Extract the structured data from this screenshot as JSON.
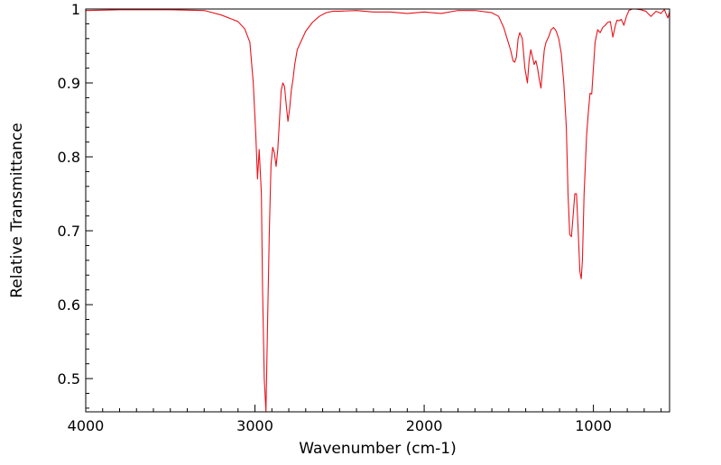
{
  "chart_data": {
    "type": "line",
    "title": "",
    "xlabel": "Wavenumber (cm-1)",
    "ylabel": "Relative Transmittance",
    "xlim": [
      4000,
      550
    ],
    "ylim": [
      0.455,
      1.0
    ],
    "x_reversed": true,
    "grid": false,
    "legend": "none",
    "x_ticks": [
      {
        "value": 4000,
        "label": "4000"
      },
      {
        "value": 3000,
        "label": "3000"
      },
      {
        "value": 2000,
        "label": "2000"
      },
      {
        "value": 1000,
        "label": "1000"
      }
    ],
    "y_ticks": [
      {
        "value": 1.0,
        "label": "1"
      },
      {
        "value": 0.9,
        "label": "0.9"
      },
      {
        "value": 0.8,
        "label": "0.8"
      },
      {
        "value": 0.7,
        "label": "0.7"
      },
      {
        "value": 0.6,
        "label": "0.6"
      },
      {
        "value": 0.5,
        "label": "0.5"
      }
    ],
    "series": [
      {
        "color": "#e8141c",
        "x": [
          4000,
          3800,
          3500,
          3300,
          3200,
          3100,
          3060,
          3030,
          3010,
          2995,
          2985,
          2975,
          2962,
          2955,
          2945,
          2935,
          2925,
          2915,
          2905,
          2895,
          2885,
          2875,
          2865,
          2855,
          2845,
          2835,
          2825,
          2815,
          2805,
          2795,
          2785,
          2775,
          2765,
          2750,
          2730,
          2700,
          2660,
          2620,
          2580,
          2540,
          2500,
          2400,
          2300,
          2200,
          2100,
          2000,
          1900,
          1800,
          1700,
          1600,
          1560,
          1530,
          1510,
          1490,
          1475,
          1465,
          1455,
          1445,
          1435,
          1420,
          1405,
          1390,
          1380,
          1370,
          1360,
          1350,
          1340,
          1330,
          1320,
          1310,
          1300,
          1290,
          1280,
          1265,
          1250,
          1235,
          1220,
          1205,
          1190,
          1175,
          1160,
          1150,
          1140,
          1130,
          1120,
          1110,
          1100,
          1090,
          1080,
          1072,
          1065,
          1055,
          1040,
          1030,
          1020,
          1010,
          1000,
          990,
          975,
          960,
          945,
          930,
          915,
          900,
          885,
          870,
          860,
          850,
          835,
          820,
          805,
          790,
          770,
          750,
          720,
          690,
          660,
          630,
          600,
          590,
          580,
          570,
          560,
          550
        ],
        "values": [
          0.998,
          0.999,
          0.999,
          0.998,
          0.992,
          0.983,
          0.973,
          0.955,
          0.9,
          0.83,
          0.77,
          0.81,
          0.75,
          0.62,
          0.5,
          0.455,
          0.58,
          0.7,
          0.79,
          0.813,
          0.805,
          0.787,
          0.81,
          0.85,
          0.89,
          0.9,
          0.895,
          0.87,
          0.848,
          0.865,
          0.89,
          0.905,
          0.925,
          0.945,
          0.955,
          0.97,
          0.982,
          0.99,
          0.995,
          0.997,
          0.997,
          0.998,
          0.996,
          0.996,
          0.994,
          0.996,
          0.994,
          0.998,
          0.998,
          0.995,
          0.99,
          0.975,
          0.96,
          0.945,
          0.93,
          0.928,
          0.935,
          0.96,
          0.968,
          0.96,
          0.92,
          0.9,
          0.93,
          0.945,
          0.935,
          0.925,
          0.93,
          0.92,
          0.905,
          0.893,
          0.92,
          0.945,
          0.955,
          0.962,
          0.972,
          0.975,
          0.97,
          0.96,
          0.94,
          0.9,
          0.84,
          0.75,
          0.695,
          0.692,
          0.72,
          0.75,
          0.75,
          0.7,
          0.645,
          0.635,
          0.66,
          0.75,
          0.83,
          0.86,
          0.886,
          0.885,
          0.92,
          0.955,
          0.972,
          0.968,
          0.975,
          0.978,
          0.982,
          0.983,
          0.962,
          0.978,
          0.985,
          0.984,
          0.986,
          0.978,
          0.99,
          0.998,
          1.0,
          1.0,
          0.999,
          0.997,
          0.99,
          0.997,
          0.994,
          0.997,
          0.999,
          0.993,
          0.988,
          0.996
        ]
      }
    ]
  }
}
